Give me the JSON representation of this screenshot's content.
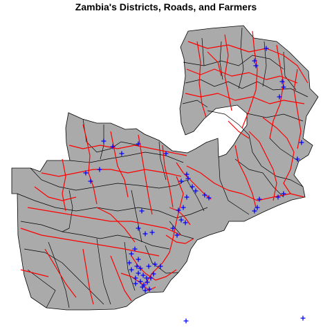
{
  "title": "Zambia's Districts, Roads, and Farmers",
  "colors": {
    "country_fill": "#aaaaaa",
    "border": "#000000",
    "road": "#ff0000",
    "farmer_marker": "#0000ff",
    "background": "#ffffff"
  },
  "layers": [
    {
      "name": "districts",
      "kind": "polygon",
      "color": "#000000"
    },
    {
      "name": "roads",
      "kind": "line",
      "color": "#ff0000"
    },
    {
      "name": "farmers",
      "kind": "point",
      "marker": "plus",
      "color": "#0000ff"
    }
  ]
}
